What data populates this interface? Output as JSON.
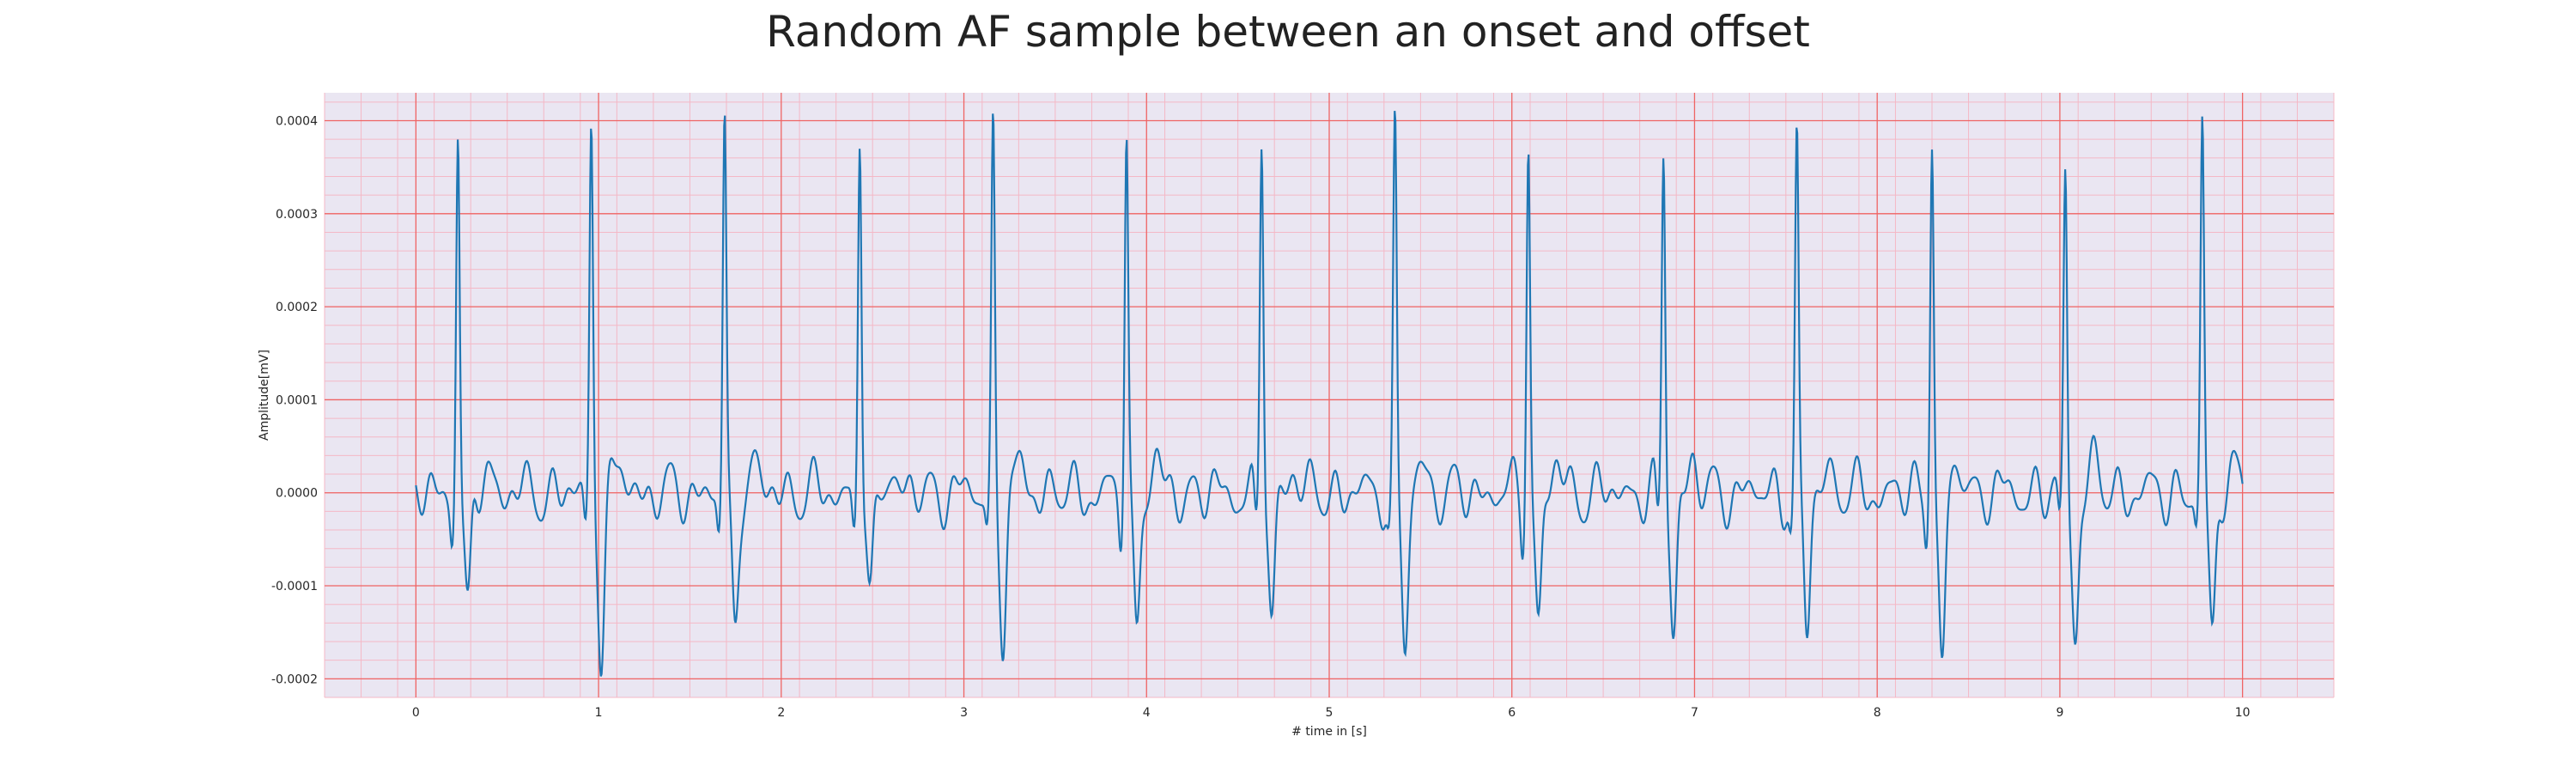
{
  "chart_data": {
    "type": "line",
    "title": "Random AF sample between an onset and offset",
    "xlabel": "# time in [s]",
    "ylabel": "Amplitude[mV]",
    "xlim": [
      -0.5,
      10.5
    ],
    "ylim": [
      -0.00022,
      0.00043
    ],
    "x_ticks": [
      0,
      1,
      2,
      3,
      4,
      5,
      6,
      7,
      8,
      9,
      10
    ],
    "x_tick_labels": [
      "0",
      "1",
      "2",
      "3",
      "4",
      "5",
      "6",
      "7",
      "8",
      "9",
      "10"
    ],
    "y_ticks": [
      -0.0002,
      -0.0001,
      0.0,
      0.0001,
      0.0002,
      0.0003,
      0.0004
    ],
    "y_tick_labels": [
      "-0.0002",
      "-0.0001",
      "0.0000",
      "0.0001",
      "0.0002",
      "0.0003",
      "0.0004"
    ],
    "grid": true,
    "minor_grid": true,
    "x_range": [
      0,
      10
    ],
    "beats": [
      {
        "t": 0.23,
        "peak": 0.000395,
        "trough": -0.00014
      },
      {
        "t": 0.96,
        "peak": 0.000397,
        "trough": -0.000162
      },
      {
        "t": 1.69,
        "peak": 0.000402,
        "trough": -0.00014
      },
      {
        "t": 2.43,
        "peak": 0.000397,
        "trough": -0.000135
      },
      {
        "t": 3.16,
        "peak": 0.000393,
        "trough": -0.000152
      },
      {
        "t": 3.89,
        "peak": 0.000388,
        "trough": -0.000143
      },
      {
        "t": 4.63,
        "peak": 0.000395,
        "trough": -0.000145
      },
      {
        "t": 5.36,
        "peak": 0.000392,
        "trough": -0.000165
      },
      {
        "t": 6.09,
        "peak": 0.000385,
        "trough": -0.000142
      },
      {
        "t": 6.83,
        "peak": 0.000367,
        "trough": -0.000145
      },
      {
        "t": 7.56,
        "peak": 0.00038,
        "trough": -0.000157
      },
      {
        "t": 8.3,
        "peak": 0.000393,
        "trough": -0.00019
      },
      {
        "t": 9.03,
        "peak": 0.000345,
        "trough": -0.000152
      },
      {
        "t": 9.78,
        "peak": 0.000387,
        "trough": -0.000152
      }
    ],
    "colors": {
      "line": "#1f77b4",
      "plot_background": "#eae6f2",
      "major_grid": "#ef6464",
      "minor_grid": "#f4b8c6"
    }
  }
}
